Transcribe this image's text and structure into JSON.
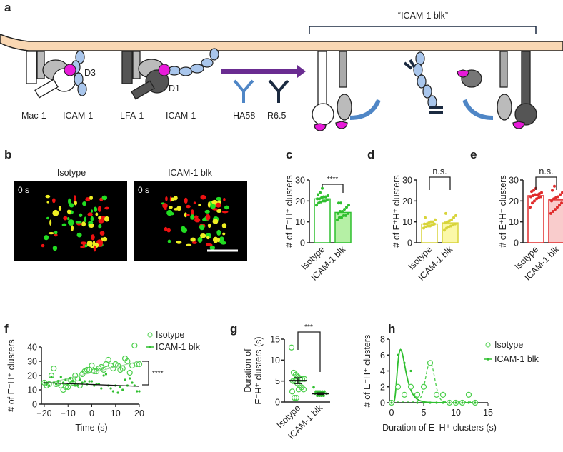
{
  "panel_labels": [
    "a",
    "b",
    "c",
    "d",
    "e",
    "f",
    "g",
    "h"
  ],
  "panel_a": {
    "labels": {
      "mac1": "Mac-1",
      "icam1_left": "ICAM-1",
      "lfa1": "LFA-1",
      "icam1_right": "ICAM-1",
      "d3": "D3",
      "d1": "D1",
      "ha58": "HA58",
      "r65": "R6.5",
      "bracket": "“ICAM-1 blk”"
    },
    "colors": {
      "membrane": "#f9d7b3",
      "icam": "#a9c6ec",
      "ligand_site": "#e81ad9",
      "arrow": "#6a2c91",
      "ha58": "#4f86c6",
      "r65": "#1b2a40"
    }
  },
  "panel_b": {
    "titles": [
      "Isotype",
      "ICAM-1 blk"
    ],
    "timestamps": [
      "0 s",
      "0 s"
    ]
  },
  "chart_data": [
    {
      "id": "c",
      "type": "bar",
      "categories": [
        "Isotype",
        "ICAM-1 blk"
      ],
      "values": [
        21,
        14.5
      ],
      "points": [
        [
          18,
          19,
          19.5,
          20,
          20,
          20.5,
          21,
          21,
          21.5,
          22,
          22,
          22.5,
          23,
          24,
          26
        ],
        [
          11,
          12,
          12,
          13,
          13,
          14,
          14,
          15,
          15,
          16,
          17,
          18,
          19,
          19
        ]
      ],
      "ylabel": "# of E⁻H⁺ clusters",
      "ylim": [
        0,
        30
      ],
      "yticks": [
        0,
        10,
        20,
        30
      ],
      "significance": "****",
      "color": "#2fbf2f",
      "fill": "#b5f0a5"
    },
    {
      "id": "d",
      "type": "bar",
      "categories": [
        "Isotype",
        "ICAM-1 blk"
      ],
      "values": [
        9,
        9.5
      ],
      "points": [
        [
          7,
          7.5,
          8,
          8,
          8.5,
          9,
          9,
          9,
          9.5,
          10,
          10,
          11,
          12
        ],
        [
          6,
          7,
          7.5,
          8,
          8.5,
          9,
          9.5,
          10,
          10.5,
          11,
          12,
          13,
          14
        ]
      ],
      "ylabel": "# of E⁺H⁺ clusters",
      "ylim": [
        0,
        30
      ],
      "yticks": [
        0,
        10,
        20,
        30
      ],
      "significance": "n.s.",
      "color": "#d8d43a",
      "fill": "#fbf8a8"
    },
    {
      "id": "e",
      "type": "bar",
      "categories": [
        "Isotype",
        "ICAM-1 blk"
      ],
      "values": [
        22.5,
        20.5
      ],
      "points": [
        [
          17,
          19,
          20,
          21,
          21.5,
          22,
          22,
          22.5,
          23,
          23,
          23.5,
          24,
          24.5,
          25,
          26
        ],
        [
          14,
          15,
          16,
          17,
          18,
          19,
          20,
          21,
          21.5,
          22,
          23,
          24,
          25,
          27
        ]
      ],
      "ylabel": "# of E⁺H⁻ clusters",
      "ylim": [
        0,
        30
      ],
      "yticks": [
        0,
        10,
        20,
        30
      ],
      "significance": "n.s.",
      "color": "#e02b2b",
      "fill": "#f9cccc"
    },
    {
      "id": "f",
      "type": "scatter",
      "xlabel": "Time (s)",
      "ylabel": "# of E⁻H⁺ clusters",
      "xlim": [
        -20,
        20
      ],
      "ylim": [
        0,
        40
      ],
      "xticks": [
        -20,
        -10,
        0,
        10,
        20
      ],
      "yticks": [
        0,
        10,
        20,
        30,
        40
      ],
      "significance": "****",
      "series": [
        {
          "name": "Isotype",
          "marker": "open-circle",
          "x": [
            -20,
            -19,
            -18,
            -17,
            -16,
            -15,
            -14,
            -13,
            -12,
            -11,
            -10,
            -9,
            -8,
            -7,
            -6,
            -5,
            -4,
            -3,
            -2,
            -1,
            0,
            1,
            2,
            3,
            4,
            5,
            6,
            7,
            8,
            9,
            10,
            11,
            12,
            13,
            14,
            15,
            16,
            17,
            18,
            19,
            20
          ],
          "y": [
            15,
            13,
            14,
            20,
            25,
            14,
            15,
            13,
            10,
            12,
            12,
            17,
            15,
            20,
            18,
            13,
            21,
            23,
            24,
            24,
            27,
            23,
            23,
            25,
            26,
            24,
            28,
            31,
            27,
            25,
            28,
            27,
            24,
            25,
            32,
            30,
            22,
            27,
            41,
            28,
            28
          ],
          "trend": [
            14,
            30
          ]
        },
        {
          "name": "ICAM-1 blk",
          "marker": "dot",
          "x": [
            -20,
            -19,
            -18,
            -17,
            -16,
            -15,
            -14,
            -13,
            -12,
            -11,
            -10,
            -9,
            -8,
            -7,
            -6,
            -5,
            -4,
            -3,
            -2,
            -1,
            0,
            1,
            2,
            3,
            4,
            5,
            6,
            7,
            8,
            9,
            10,
            11,
            12,
            13,
            14,
            15,
            16,
            17,
            18,
            19,
            20
          ],
          "y": [
            15,
            14,
            13,
            19,
            15,
            14,
            16,
            19,
            15,
            17,
            14,
            18,
            16,
            13,
            13,
            17,
            15,
            16,
            14,
            16,
            16,
            13,
            14,
            14,
            11,
            20,
            21,
            13,
            11,
            9,
            13,
            8,
            12,
            10,
            17,
            13,
            18,
            15,
            13,
            9,
            9
          ],
          "trend": [
            15,
            12.5
          ]
        }
      ]
    },
    {
      "id": "g",
      "type": "scatter",
      "categories": [
        "Isotype",
        "ICAM-1 blk"
      ],
      "ylabel": "Duration of E⁻H⁺ clusters (s)",
      "ylim": [
        0,
        15
      ],
      "yticks": [
        0,
        5,
        10,
        15
      ],
      "significance": "***",
      "means": [
        5.1,
        2.0
      ],
      "sem": [
        0.7,
        0.2
      ],
      "points": [
        [
          13,
          7,
          6.5,
          6,
          5.5,
          5.5,
          5.5,
          5,
          5,
          4.5,
          4,
          3.5,
          3,
          2.5,
          1,
          1,
          3
        ],
        [
          3.5,
          2.5,
          2.5,
          2.5,
          2.5,
          2.5,
          2,
          2,
          1.5,
          1.5,
          1.5,
          1.5
        ]
      ],
      "color": "#2fbf2f"
    },
    {
      "id": "h",
      "type": "line",
      "xlabel": "Duration of E⁻H⁺ clusters (s)",
      "ylabel": "# of E⁻H⁺ clusters",
      "xlim": [
        0,
        15
      ],
      "ylim": [
        0,
        8
      ],
      "xticks": [
        0,
        5,
        10,
        15
      ],
      "yticks": [
        0,
        2,
        4,
        6,
        8
      ],
      "series": [
        {
          "name": "Isotype",
          "marker": "open-circle",
          "fit": "dashed",
          "x": [
            0,
            1,
            2,
            3,
            4,
            5,
            6,
            7,
            8,
            9,
            10,
            11,
            12,
            13
          ],
          "y": [
            0,
            2,
            1,
            2,
            1,
            2,
            5,
            1,
            1,
            0,
            0,
            0,
            1,
            0
          ]
        },
        {
          "name": "ICAM-1 blk",
          "marker": "dot",
          "fit": "solid",
          "x": [
            0,
            1,
            2,
            3,
            4,
            5,
            6,
            7,
            8,
            9,
            10,
            11,
            12,
            13
          ],
          "y": [
            0,
            6,
            5,
            4,
            0,
            0,
            0,
            0,
            0,
            0,
            0,
            0,
            0,
            0
          ]
        }
      ]
    }
  ]
}
